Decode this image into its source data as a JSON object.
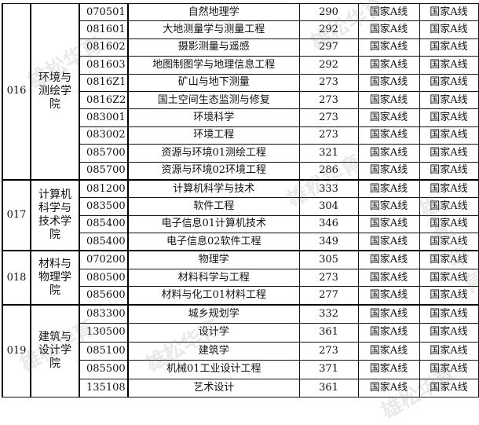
{
  "watermark": "雄松华育",
  "groups": [
    {
      "code": "016",
      "college": "环境与测绘学院",
      "rows": [
        {
          "major_code": "070501",
          "major": "自然地理学",
          "score": "290",
          "line1": "国家A线",
          "line2": "国家A线"
        },
        {
          "major_code": "081601",
          "major": "大地测量学与测量工程",
          "score": "292",
          "line1": "国家A线",
          "line2": "国家A线"
        },
        {
          "major_code": "081602",
          "major": "摄影测量与遥感",
          "score": "297",
          "line1": "国家A线",
          "line2": "国家A线"
        },
        {
          "major_code": "081603",
          "major": "地图制图学与地理信息工程",
          "score": "292",
          "line1": "国家A线",
          "line2": "国家A线"
        },
        {
          "major_code": "0816Z1",
          "major": "矿山与地下测量",
          "score": "273",
          "line1": "国家A线",
          "line2": "国家A线"
        },
        {
          "major_code": "0816Z2",
          "major": "国土空间生态监测与修复",
          "score": "273",
          "line1": "国家A线",
          "line2": "国家A线"
        },
        {
          "major_code": "083001",
          "major": "环境科学",
          "score": "273",
          "line1": "国家A线",
          "line2": "国家A线"
        },
        {
          "major_code": "083002",
          "major": "环境工程",
          "score": "273",
          "line1": "国家A线",
          "line2": "国家A线"
        },
        {
          "major_code": "085700",
          "major": "资源与环境01测绘工程",
          "score": "321",
          "line1": "国家A线",
          "line2": "国家A线"
        },
        {
          "major_code": "085700",
          "major": "资源与环境02环境工程",
          "score": "286",
          "line1": "国家A线",
          "line2": "国家A线"
        }
      ]
    },
    {
      "code": "017",
      "college": "计算机科学与技术学院",
      "rows": [
        {
          "major_code": "081200",
          "major": "计算机科学与技术",
          "score": "333",
          "line1": "国家A线",
          "line2": "国家A线"
        },
        {
          "major_code": "083500",
          "major": "软件工程",
          "score": "304",
          "line1": "国家A线",
          "line2": "国家A线"
        },
        {
          "major_code": "085400",
          "major": "电子信息01计算机技术",
          "score": "346",
          "line1": "国家A线",
          "line2": "国家A线"
        },
        {
          "major_code": "085400",
          "major": "电子信息02软件工程",
          "score": "349",
          "line1": "国家A线",
          "line2": "国家A线"
        }
      ]
    },
    {
      "code": "018",
      "college": "材料与物理学院",
      "rows": [
        {
          "major_code": "070200",
          "major": "物理学",
          "score": "305",
          "line1": "国家A线",
          "line2": "国家A线"
        },
        {
          "major_code": "080500",
          "major": "材料科学与工程",
          "score": "273",
          "line1": "国家A线",
          "line2": "国家A线"
        },
        {
          "major_code": "085600",
          "major": "材料与化工01材料工程",
          "score": "277",
          "line1": "国家A线",
          "line2": "国家A线"
        }
      ]
    },
    {
      "code": "019",
      "college": "建筑与设计学院",
      "rows": [
        {
          "major_code": "083300",
          "major": "城乡规划学",
          "score": "332",
          "line1": "国家A线",
          "line2": "国家A线"
        },
        {
          "major_code": "130500",
          "major": "设计学",
          "score": "361",
          "line1": "国家A线",
          "line2": "国家A线"
        },
        {
          "major_code": "085100",
          "major": "建筑学",
          "score": "273",
          "line1": "国家A线",
          "line2": "国家A线"
        },
        {
          "major_code": "085500",
          "major": "机械01工业设计工程",
          "score": "371",
          "line1": "国家A线",
          "line2": "国家A线"
        },
        {
          "major_code": "135108",
          "major": "艺术设计",
          "score": "361",
          "line1": "国家A线",
          "line2": "国家A线"
        }
      ]
    }
  ]
}
